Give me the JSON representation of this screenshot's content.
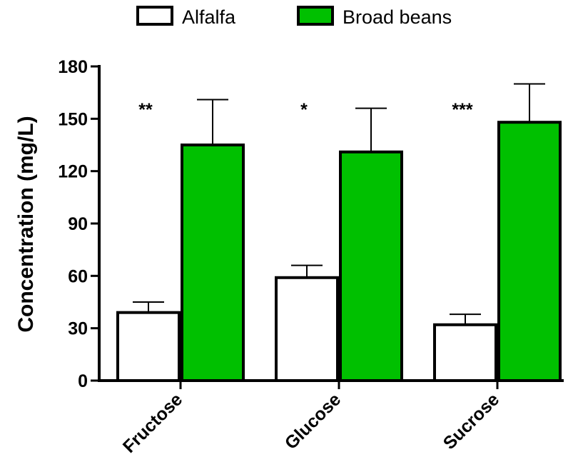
{
  "chart_data": {
    "type": "bar",
    "categories": [
      "Fructose",
      "Glucose",
      "Sucrose"
    ],
    "series": [
      {
        "name": "Alfalfa",
        "values": [
          39,
          59,
          32
        ],
        "errors": [
          6,
          7,
          6
        ],
        "color": "#ffffff"
      },
      {
        "name": "Broad beans",
        "values": [
          135,
          131,
          148
        ],
        "errors": [
          26,
          25,
          22
        ],
        "color": "#00c000"
      }
    ],
    "significance": [
      "**",
      "*",
      "***"
    ],
    "ylabel": "Concentration (mg/L)",
    "xlabel": "",
    "ylim": [
      0,
      180
    ],
    "yticks": [
      0,
      30,
      60,
      90,
      120,
      150,
      180
    ],
    "legend": "top",
    "grid": false
  }
}
